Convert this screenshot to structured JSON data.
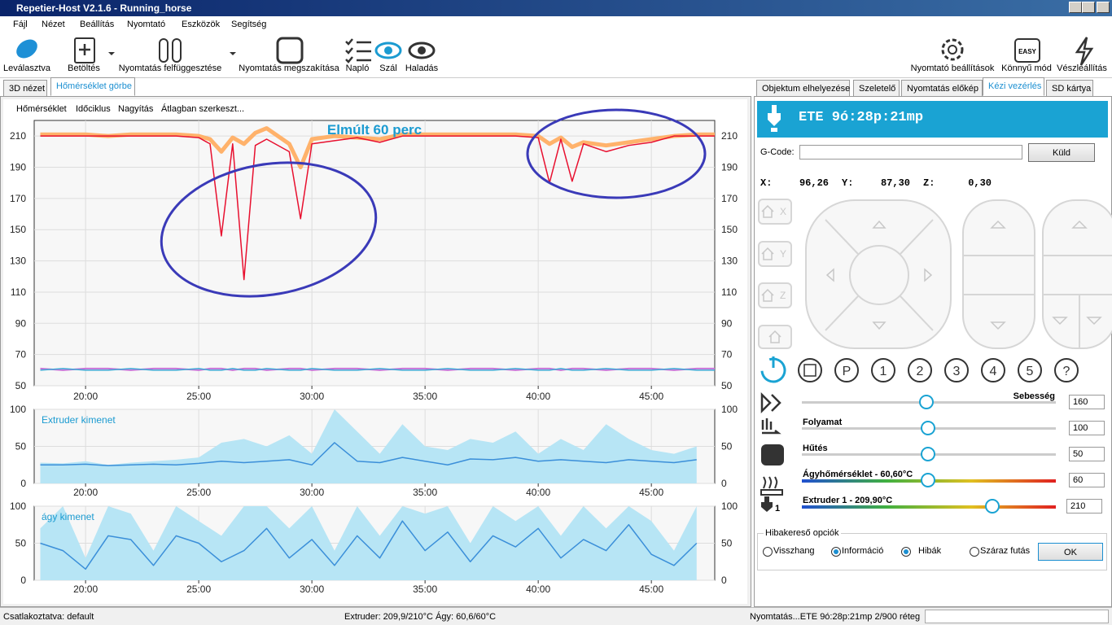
{
  "window": {
    "title": "Repetier-Host V2.1.6 - Running_horse"
  },
  "menu": [
    "Fájl",
    "Nézet",
    "Beállítás",
    "Nyomtató",
    "Eszközök",
    "Segítség"
  ],
  "toolbar": {
    "left": [
      "Leválasztva",
      "Betöltés",
      "Nyomtatás felfüggesztése",
      "Nyomtatás megszakítása",
      "Napló",
      "Szál",
      "Haladás"
    ],
    "right": [
      "Nyomtató beállítások",
      "Könnyű mód",
      "Vészleállítás"
    ],
    "easy_icon": "EASY"
  },
  "left_tabs": [
    "3D nézet",
    "Hőmérséklet görbe"
  ],
  "chart_menu": [
    "Hőmérséklet",
    "Időciklus",
    "Nagyítás",
    "Átlagban szerkeszt..."
  ],
  "charts": [
    {
      "type": "line",
      "title": "Elmúlt 60 perc",
      "x": [
        18,
        19,
        20,
        21,
        22,
        23,
        24,
        25,
        25.5,
        26,
        26.5,
        27,
        27.5,
        28,
        29,
        29.5,
        30,
        31,
        32,
        33,
        34,
        35,
        36,
        37,
        38,
        39,
        40,
        40.5,
        41,
        41.5,
        42,
        43,
        44,
        45,
        46,
        47,
        47.8
      ],
      "xlim": [
        17.73,
        47.8
      ],
      "xticks": [
        {
          "value": 20,
          "label": "20:00"
        },
        {
          "value": 25,
          "label": "25:00"
        },
        {
          "value": 30,
          "label": "30:00"
        },
        {
          "value": 35,
          "label": "35:00"
        },
        {
          "value": 40,
          "label": "40:00"
        },
        {
          "value": 45,
          "label": "45:00"
        }
      ],
      "ylim": [
        50,
        220
      ],
      "yticks": [
        50,
        70,
        90,
        110,
        130,
        150,
        170,
        190,
        210
      ],
      "grid": true,
      "series": [
        {
          "color": "#ffb26b",
          "width": 5,
          "values": [
            211,
            211,
            211,
            210,
            211,
            211,
            211,
            210,
            208,
            200,
            209,
            205,
            212,
            215,
            205,
            190,
            208,
            210,
            209,
            208,
            211,
            211,
            211,
            211,
            211,
            211,
            210,
            205,
            209,
            203,
            206,
            204,
            206,
            208,
            210,
            211,
            211
          ]
        },
        {
          "color": "#e8102f",
          "width": 1.5,
          "values": [
            210,
            210,
            210,
            210,
            210,
            210,
            210,
            209,
            205,
            146,
            205,
            118,
            204,
            208,
            200,
            157,
            205,
            207,
            209,
            206,
            210,
            210,
            210,
            210,
            210,
            210,
            209,
            180,
            208,
            181,
            205,
            200,
            204,
            206,
            210,
            210,
            210
          ]
        },
        {
          "color": "#c774d8",
          "width": 2,
          "values": [
            61,
            60,
            61,
            61,
            60,
            61,
            61,
            60,
            61,
            61,
            60,
            61,
            61,
            60,
            61,
            61,
            60,
            61,
            61,
            60,
            61,
            61,
            60,
            61,
            61,
            60,
            61,
            61,
            60,
            61,
            61,
            60,
            61,
            61,
            60,
            61,
            61
          ]
        },
        {
          "color": "#3fa9d6",
          "width": 1.5,
          "values": [
            60,
            61,
            60,
            60,
            61,
            60,
            60,
            61,
            60,
            60,
            61,
            60,
            60,
            61,
            60,
            60,
            61,
            60,
            60,
            61,
            60,
            60,
            61,
            60,
            60,
            61,
            60,
            60,
            61,
            60,
            60,
            61,
            60,
            60,
            61,
            60,
            60
          ]
        }
      ]
    },
    {
      "type": "line",
      "title": "Extruder kimenet",
      "x": [
        18,
        19,
        20,
        21,
        22,
        23,
        24,
        25,
        26,
        27,
        28,
        29,
        30,
        31,
        32,
        33,
        34,
        35,
        36,
        37,
        38,
        39,
        40,
        41,
        42,
        43,
        44,
        45,
        46,
        47
      ],
      "xlim": [
        17.73,
        47.8
      ],
      "xticks": [
        {
          "value": 20,
          "label": "20:00"
        },
        {
          "value": 25,
          "label": "25:00"
        },
        {
          "value": 30,
          "label": "30:00"
        },
        {
          "value": 35,
          "label": "35:00"
        },
        {
          "value": 40,
          "label": "40:00"
        },
        {
          "value": 45,
          "label": "45:00"
        }
      ],
      "ylim": [
        0,
        100
      ],
      "yticks": [
        0,
        50,
        100
      ],
      "grid": true,
      "series": [
        {
          "color": "#b7e5f5",
          "area": true,
          "values": [
            28,
            27,
            30,
            25,
            28,
            30,
            32,
            35,
            55,
            60,
            50,
            65,
            40,
            100,
            70,
            40,
            80,
            50,
            45,
            60,
            55,
            70,
            40,
            60,
            45,
            80,
            60,
            45,
            40,
            50
          ]
        },
        {
          "color": "#3b8fd9",
          "width": 1.5,
          "values": [
            25,
            25,
            26,
            24,
            25,
            26,
            25,
            27,
            30,
            28,
            30,
            32,
            25,
            55,
            30,
            28,
            35,
            30,
            25,
            33,
            32,
            35,
            30,
            32,
            30,
            28,
            32,
            30,
            28,
            32
          ]
        }
      ]
    },
    {
      "type": "line",
      "title": "ágy kimenet",
      "x": [
        18,
        19,
        20,
        21,
        22,
        23,
        24,
        25,
        26,
        27,
        28,
        29,
        30,
        31,
        32,
        33,
        34,
        35,
        36,
        37,
        38,
        39,
        40,
        41,
        42,
        43,
        44,
        45,
        46,
        47
      ],
      "xlim": [
        17.73,
        47.8
      ],
      "xticks": [
        {
          "value": 20,
          "label": "20:00"
        },
        {
          "value": 25,
          "label": "25:00"
        },
        {
          "value": 30,
          "label": "30:00"
        },
        {
          "value": 35,
          "label": "35:00"
        },
        {
          "value": 40,
          "label": "40:00"
        },
        {
          "value": 45,
          "label": "45:00"
        }
      ],
      "ylim": [
        0,
        100
      ],
      "yticks": [
        0,
        50,
        100
      ],
      "grid": true,
      "series": [
        {
          "color": "#b7e5f5",
          "area": true,
          "values": [
            70,
            100,
            30,
            100,
            90,
            40,
            100,
            80,
            60,
            100,
            100,
            70,
            100,
            40,
            100,
            60,
            100,
            90,
            100,
            50,
            100,
            80,
            100,
            60,
            100,
            70,
            100,
            80,
            40,
            100
          ]
        },
        {
          "color": "#3b8fd9",
          "width": 1.5,
          "values": [
            50,
            40,
            15,
            60,
            55,
            20,
            60,
            50,
            25,
            40,
            70,
            30,
            55,
            20,
            60,
            30,
            80,
            40,
            65,
            25,
            60,
            45,
            70,
            30,
            55,
            40,
            75,
            35,
            20,
            50
          ]
        }
      ]
    }
  ],
  "right_tabs": [
    "Objektum elhelyezése",
    "Szeletelő",
    "Nyomtatás előkép",
    "Kézi vezérlés",
    "SD kártya"
  ],
  "manual": {
    "eta": "ETE 9ó:28p:21mp",
    "gcode_label": "G-Code:",
    "send": "Küld",
    "coords": [
      {
        "axis": "X:",
        "value": "96,26"
      },
      {
        "axis": "Y:",
        "value": "87,30"
      },
      {
        "axis": "Z:",
        "value": "0,30"
      }
    ],
    "home_axes": [
      "X",
      "Y",
      "Z"
    ],
    "buttons": [
      "P",
      "1",
      "2",
      "3",
      "4",
      "5",
      "?"
    ],
    "sliders": [
      {
        "label": "Sebesség",
        "value": 160
      },
      {
        "label": "Folyamat",
        "value": 100
      },
      {
        "label": "Hűtés",
        "value": 50
      },
      {
        "label": "Ágyhőmérséklet - 60,60°C",
        "value": 60
      },
      {
        "label": "Extruder 1 - 209,90°C",
        "value": 210
      }
    ],
    "extruder_number": "1",
    "debug": {
      "title": "Hibakereső opciók",
      "options": [
        {
          "label": "Visszhang",
          "checked": false
        },
        {
          "label": "Információ",
          "checked": true
        },
        {
          "label": "Hibák",
          "checked": true
        },
        {
          "label": "Száraz futás",
          "checked": false
        }
      ],
      "ok": "OK"
    }
  },
  "status": [
    "Csatlakoztatva: default",
    "Extruder: 209,9/210°C Ágy: 60,6/60°C",
    "Nyomtatás...ETE 9ó:28p:21mp 2/900 réteg"
  ]
}
